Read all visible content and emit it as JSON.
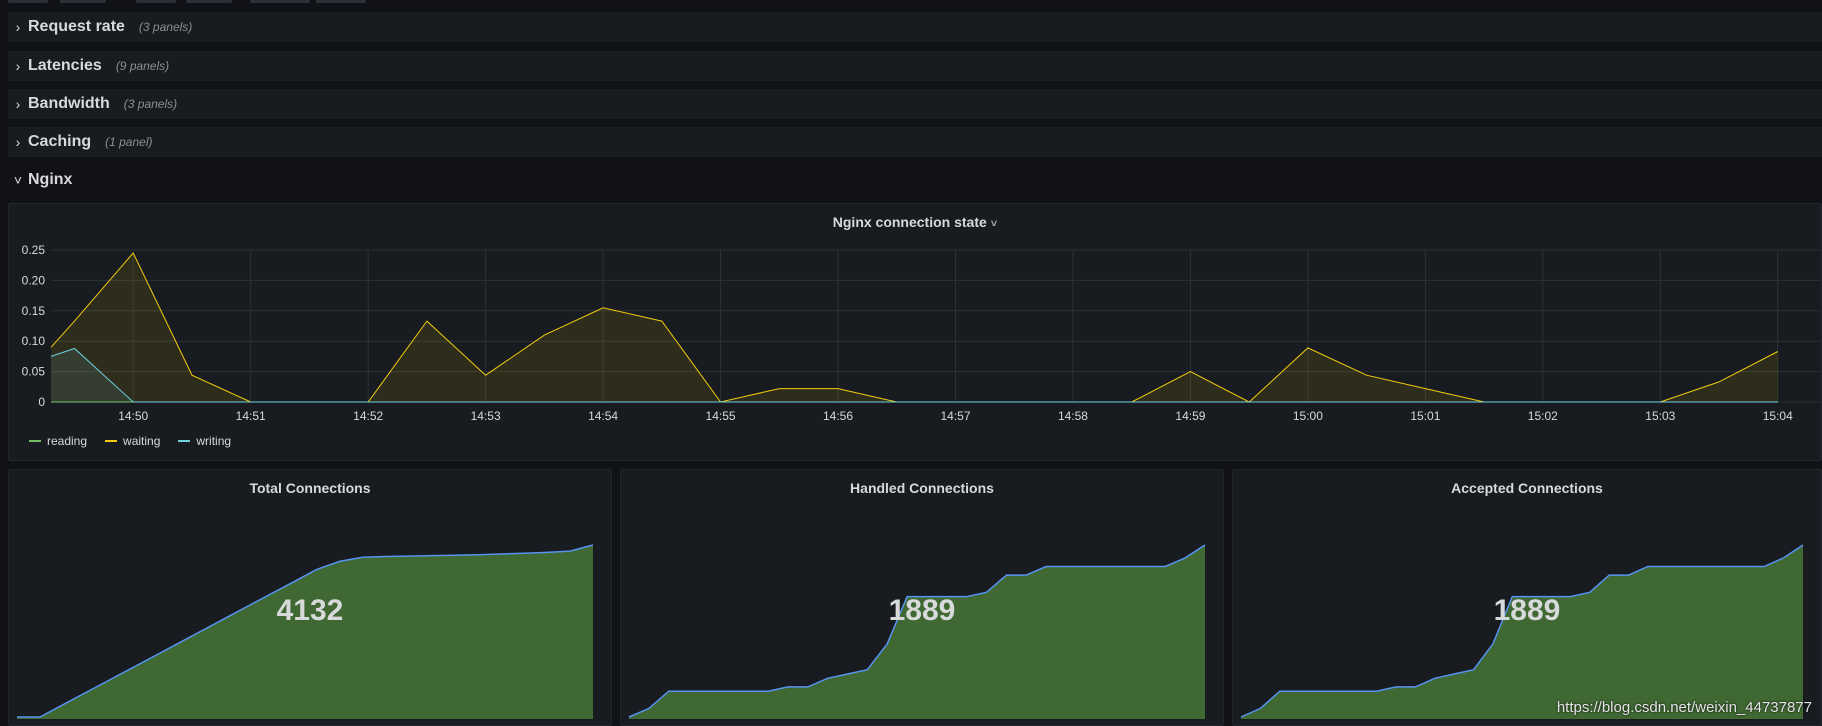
{
  "rows": [
    {
      "title": "Request rate",
      "count": "(3 panels)",
      "chevron": "›"
    },
    {
      "title": "Latencies",
      "count": "(9 panels)",
      "chevron": "›"
    },
    {
      "title": "Bandwidth",
      "count": "(3 panels)",
      "chevron": "›"
    },
    {
      "title": "Caching",
      "count": "(1 panel)",
      "chevron": "›"
    },
    {
      "title": "Nginx",
      "count": "",
      "chevron": "˅"
    }
  ],
  "connection_panel": {
    "title": "Nginx connection state",
    "caret": "˅"
  },
  "colors": {
    "reading": "#73bf69",
    "waiting": "#f2cc0c",
    "writing": "#6ed0e0",
    "stat_fill": "#3f6833",
    "stat_line": "#5794f2",
    "grid": "#2c3235"
  },
  "chart_data": [
    {
      "type": "area",
      "title": "Nginx connection state",
      "ylim": [
        0,
        0.25
      ],
      "y_ticks": [
        "0",
        "0.05",
        "0.10",
        "0.15",
        "0.20",
        "0.25"
      ],
      "x_ticks": [
        "14:50",
        "14:51",
        "14:52",
        "14:53",
        "14:54",
        "14:55",
        "14:56",
        "14:57",
        "14:58",
        "14:59",
        "15:00",
        "15:01",
        "15:02",
        "15:03",
        "15:04"
      ],
      "x_min_minutes": 889.3,
      "x_max_minutes": 904.3,
      "grid": true,
      "legend_position": "bottom-left",
      "series": [
        {
          "name": "reading",
          "color_key": "reading",
          "points": [
            [
              889.3,
              0
            ],
            [
              904,
              0
            ]
          ]
        },
        {
          "name": "waiting",
          "color_key": "waiting",
          "points": [
            [
              889.3,
              0.09
            ],
            [
              889.5,
              0.133
            ],
            [
              890,
              0.245
            ],
            [
              890.5,
              0.044
            ],
            [
              891,
              0
            ],
            [
              892,
              0
            ],
            [
              892.5,
              0.133
            ],
            [
              893,
              0.044
            ],
            [
              893.5,
              0.11
            ],
            [
              894,
              0.155
            ],
            [
              894.5,
              0.133
            ],
            [
              895,
              0
            ],
            [
              895.5,
              0.022
            ],
            [
              896,
              0.022
            ],
            [
              896.5,
              0
            ],
            [
              897,
              0
            ],
            [
              898,
              0
            ],
            [
              898.5,
              0
            ],
            [
              899,
              0.05
            ],
            [
              899.5,
              0
            ],
            [
              900,
              0.089
            ],
            [
              900.5,
              0.044
            ],
            [
              901,
              0.022
            ],
            [
              901.5,
              0
            ],
            [
              902,
              0
            ],
            [
              903,
              0
            ],
            [
              903.5,
              0.033
            ],
            [
              904,
              0.083
            ]
          ]
        },
        {
          "name": "writing",
          "color_key": "writing",
          "points": [
            [
              889.3,
              0.075
            ],
            [
              889.5,
              0.088
            ],
            [
              890,
              0
            ],
            [
              904,
              0
            ]
          ]
        }
      ]
    },
    {
      "type": "area",
      "title": "Total Connections",
      "value": "4132",
      "sparkline": [
        0,
        0,
        3,
        6,
        9,
        12,
        15,
        18,
        21,
        24,
        27,
        30,
        33,
        36,
        38,
        39,
        39.2,
        39.3,
        39.4,
        39.5,
        39.6,
        39.8,
        40,
        40.2,
        40.5,
        42
      ]
    },
    {
      "type": "area",
      "title": "Handled Connections",
      "value": "1889",
      "sparkline": [
        0,
        2,
        6,
        6,
        6,
        6,
        6,
        6,
        7,
        7,
        9,
        10,
        11,
        17,
        28,
        28,
        28,
        28,
        29,
        33,
        33,
        35,
        35,
        35,
        35,
        35,
        35,
        35,
        37,
        40
      ]
    },
    {
      "type": "area",
      "title": "Accepted Connections",
      "value": "1889",
      "sparkline": [
        0,
        2,
        6,
        6,
        6,
        6,
        6,
        6,
        7,
        7,
        9,
        10,
        11,
        17,
        28,
        28,
        28,
        28,
        29,
        33,
        33,
        35,
        35,
        35,
        35,
        35,
        35,
        35,
        37,
        40
      ]
    }
  ],
  "watermark": "https://blog.csdn.net/weixin_44737877"
}
